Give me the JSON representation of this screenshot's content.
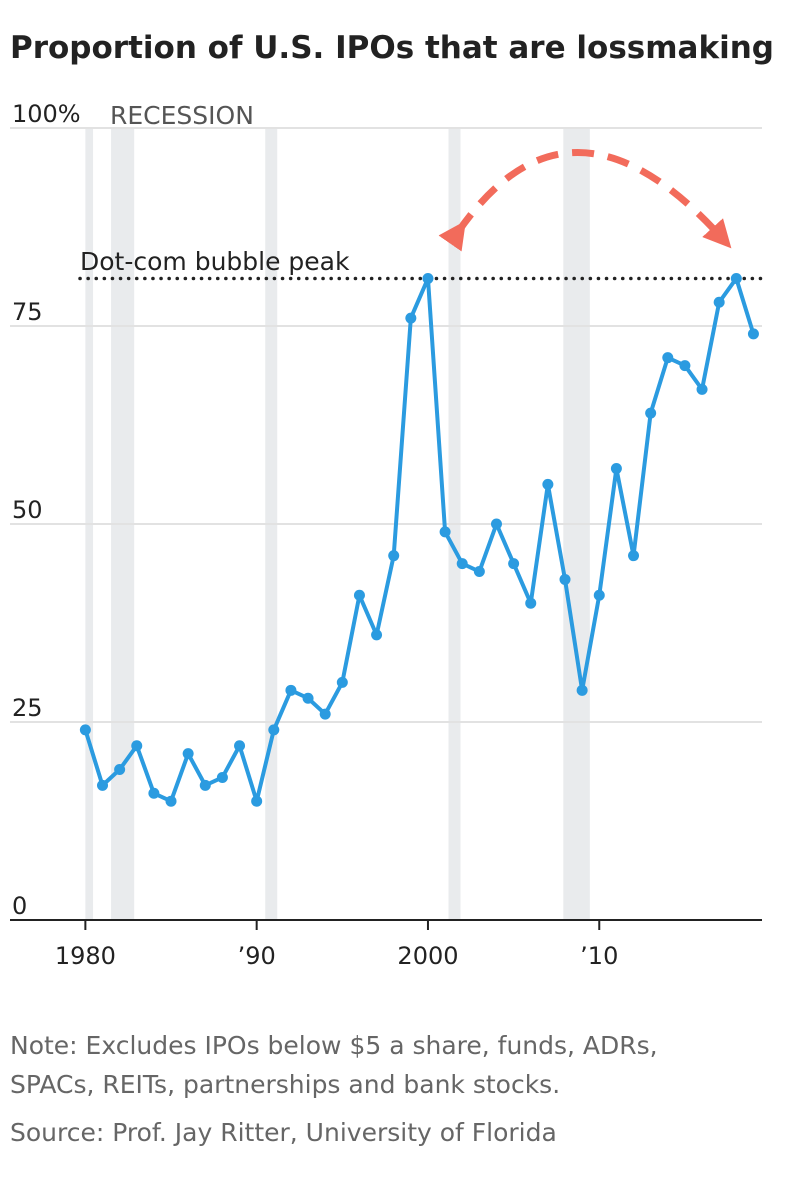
{
  "chart_data": {
    "type": "line",
    "title": "Proportion of U.S. IPOs that are lossmaking",
    "recession_label": "RECESSION",
    "x": [
      1980,
      1981,
      1982,
      1983,
      1984,
      1985,
      1986,
      1987,
      1988,
      1989,
      1990,
      1991,
      1992,
      1993,
      1994,
      1995,
      1996,
      1997,
      1998,
      1999,
      2000,
      2001,
      2002,
      2003,
      2004,
      2005,
      2006,
      2007,
      2008,
      2009,
      2010,
      2011,
      2012,
      2013,
      2014,
      2015,
      2016,
      2017,
      2018,
      2019
    ],
    "values": [
      24,
      17,
      19,
      22,
      16,
      15,
      21,
      17,
      18,
      22,
      15,
      24,
      29,
      28,
      26,
      30,
      41,
      36,
      46,
      76,
      81,
      49,
      45,
      44,
      50,
      45,
      40,
      55,
      43,
      29,
      41,
      57,
      46,
      64,
      71,
      70,
      67,
      78,
      81,
      74
    ],
    "color": "#2b9be0",
    "recessions": [
      [
        1980.0,
        1980.45
      ],
      [
        1981.5,
        1982.85
      ],
      [
        1990.5,
        1991.2
      ],
      [
        2001.2,
        2001.9
      ],
      [
        2007.9,
        2009.45
      ]
    ],
    "recession_color": "#e9ebed",
    "reference_line": {
      "value": 81,
      "label": "Dot-com bubble peak"
    },
    "xlim": [
      1975.6,
      2019.5
    ],
    "xticks": [
      1980,
      {
        "value": 1990,
        "label": "’90"
      },
      2000,
      {
        "value": 2010,
        "label": "’10"
      }
    ],
    "ylim": [
      0,
      100
    ],
    "yticks": [
      0,
      25,
      50,
      75,
      {
        "value": 100,
        "label": "100%"
      }
    ],
    "grid": true,
    "note": [
      "Note: Excludes IPOs below $5 a share, funds, ADRs,",
      "SPACs, REITs, partnerships and bank stocks."
    ],
    "source": "Source: Prof. Jay Ritter, University of Florida"
  }
}
